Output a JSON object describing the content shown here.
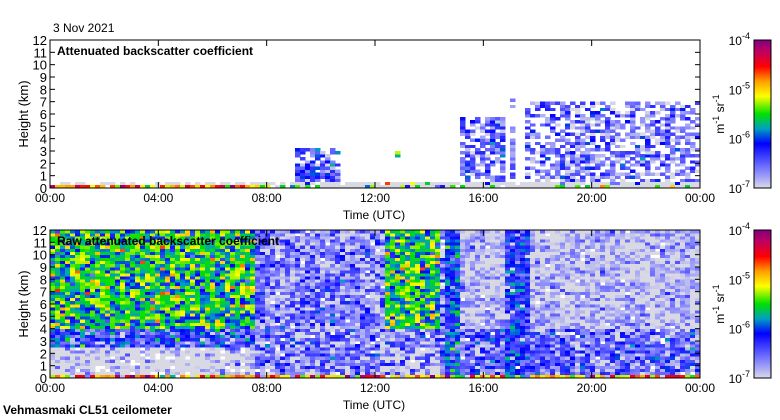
{
  "date": "3 Nov 2021",
  "footer": "Vehmasmaki CL51 ceilometer",
  "chart_data": [
    {
      "type": "heatmap",
      "title": "Attenuated backscatter coefficient",
      "xlabel": "Time (UTC)",
      "ylabel": "Height (km)",
      "xlim_hours": [
        0,
        24
      ],
      "ylim": [
        0,
        12
      ],
      "xticks": [
        "00:00",
        "04:00",
        "08:00",
        "12:00",
        "16:00",
        "20:00",
        "00:00"
      ],
      "yticks": [
        "0",
        "1",
        "2",
        "3",
        "4",
        "5",
        "6",
        "7",
        "8",
        "9",
        "10",
        "11",
        "12"
      ],
      "colorbar": {
        "label": "m-1 sr-1",
        "scale": "log",
        "range_log10": [
          -7,
          -4
        ],
        "ticks": [
          "10-7",
          "10-6",
          "10-5",
          "10-4"
        ]
      },
      "background_log10": null,
      "regions": [
        {
          "t": [
            0,
            24
          ],
          "h": [
            0,
            0.4
          ],
          "log10": -7.2,
          "spread": 0.2,
          "density": 0.5
        },
        {
          "t": [
            0,
            8.2
          ],
          "h": [
            0,
            0.25
          ],
          "log10": -4.8,
          "spread": 0.6,
          "density": 0.9
        },
        {
          "t": [
            12.3,
            14
          ],
          "h": [
            0,
            0.6
          ],
          "log10": -5.0,
          "spread": 0.6,
          "density": 0.6
        },
        {
          "t": [
            8.5,
            24
          ],
          "h": [
            0,
            0.25
          ],
          "log10": -5.6,
          "spread": 0.6,
          "density": 0.7
        },
        {
          "t": [
            9.0,
            10.7
          ],
          "h": [
            0.3,
            3.3
          ],
          "log10": -6.4,
          "spread": 0.5,
          "density": 0.75
        },
        {
          "t": [
            12.75,
            12.85
          ],
          "h": [
            2.6,
            3.0
          ],
          "log10": -5.5,
          "spread": 0.4,
          "density": 1
        },
        {
          "t": [
            15.2,
            16.8
          ],
          "h": [
            0.3,
            5.8
          ],
          "log10": -6.5,
          "spread": 0.5,
          "density": 0.7
        },
        {
          "t": [
            17.0,
            17.15
          ],
          "h": [
            0.5,
            8.0
          ],
          "log10": -6.7,
          "spread": 0.3,
          "density": 0.6
        },
        {
          "t": [
            17.6,
            24
          ],
          "h": [
            0.3,
            7.0
          ],
          "log10": -6.6,
          "spread": 0.5,
          "density": 0.62
        },
        {
          "t": [
            9.0,
            24
          ],
          "h": [
            0,
            0.6
          ],
          "log10": -7.3,
          "spread": 0.1,
          "density": 0.6
        }
      ]
    },
    {
      "type": "heatmap",
      "title": "Raw attenuated backscatter coefficient",
      "xlabel": "Time (UTC)",
      "ylabel": "Height (km)",
      "xlim_hours": [
        0,
        24
      ],
      "ylim": [
        0,
        12
      ],
      "xticks": [
        "00:00",
        "04:00",
        "08:00",
        "12:00",
        "16:00",
        "20:00",
        "00:00"
      ],
      "yticks": [
        "0",
        "1",
        "2",
        "3",
        "4",
        "5",
        "6",
        "7",
        "8",
        "9",
        "10",
        "11",
        "12"
      ],
      "colorbar": {
        "label": "m-1 sr-1",
        "scale": "log",
        "range_log10": [
          -7,
          -4
        ],
        "ticks": [
          "10-7",
          "10-6",
          "10-5",
          "10-4"
        ]
      },
      "background_log10": -6.9,
      "regions": [
        {
          "t": [
            0,
            7.6
          ],
          "h": [
            4,
            12
          ],
          "log10": -5.6,
          "spread": 0.6,
          "density": 1
        },
        {
          "t": [
            0,
            7.6
          ],
          "h": [
            2.5,
            4
          ],
          "log10": -6.3,
          "spread": 0.6,
          "density": 1
        },
        {
          "t": [
            0,
            7.6
          ],
          "h": [
            0.3,
            2.5
          ],
          "log10": -7.5,
          "spread": 0.2,
          "density": 0.35
        },
        {
          "t": [
            7.6,
            14.5
          ],
          "h": [
            0.3,
            12
          ],
          "log10": -6.6,
          "spread": 0.5,
          "density": 0.85
        },
        {
          "t": [
            12.4,
            14.4
          ],
          "h": [
            4,
            12
          ],
          "log10": -5.6,
          "spread": 0.6,
          "density": 1
        },
        {
          "t": [
            12.4,
            14.4
          ],
          "h": [
            0.3,
            2.5
          ],
          "log10": -7.5,
          "spread": 0.2,
          "density": 0.35
        },
        {
          "t": [
            14.5,
            15.2
          ],
          "h": [
            0.3,
            12
          ],
          "log10": -6.1,
          "spread": 0.5,
          "density": 1
        },
        {
          "t": [
            15.2,
            24
          ],
          "h": [
            4,
            12
          ],
          "log10": -6.9,
          "spread": 0.4,
          "density": 0.9
        },
        {
          "t": [
            15.2,
            24
          ],
          "h": [
            0.3,
            4
          ],
          "log10": -6.5,
          "spread": 0.5,
          "density": 0.9
        },
        {
          "t": [
            16.8,
            17.8
          ],
          "h": [
            0.3,
            12
          ],
          "log10": -6.2,
          "spread": 0.4,
          "density": 0.9
        },
        {
          "t": [
            0,
            24
          ],
          "h": [
            0,
            0.3
          ],
          "log10": -4.9,
          "spread": 0.7,
          "density": 0.9
        }
      ]
    }
  ]
}
